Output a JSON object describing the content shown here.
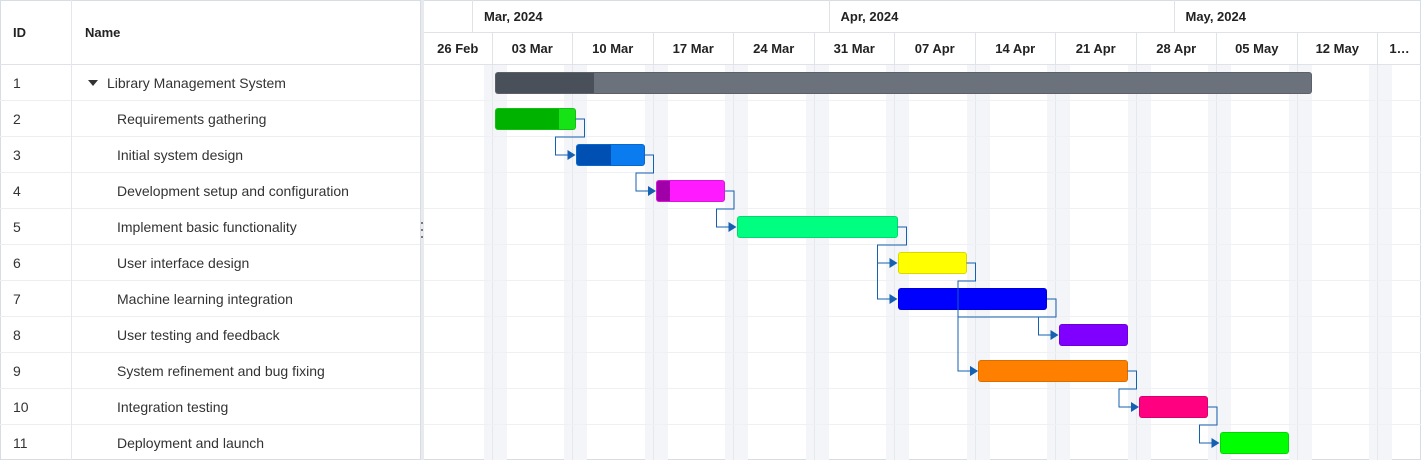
{
  "grid": {
    "headers": {
      "id": "ID",
      "name": "Name"
    },
    "rows": [
      {
        "id": "1",
        "name": "Library Management System",
        "parent": true
      },
      {
        "id": "2",
        "name": "Requirements gathering"
      },
      {
        "id": "3",
        "name": "Initial system design"
      },
      {
        "id": "4",
        "name": "Development setup and configuration"
      },
      {
        "id": "5",
        "name": "Implement basic functionality"
      },
      {
        "id": "6",
        "name": "User interface design"
      },
      {
        "id": "7",
        "name": "Machine learning integration"
      },
      {
        "id": "8",
        "name": "User testing and feedback"
      },
      {
        "id": "9",
        "name": "System refinement and bug fixing"
      },
      {
        "id": "10",
        "name": "Integration testing"
      },
      {
        "id": "11",
        "name": "Deployment and launch"
      }
    ]
  },
  "timeline": {
    "months": [
      "Mar, 2024",
      "Apr, 2024",
      "May, 2024"
    ],
    "weeks": [
      "26 Feb",
      "03 Mar",
      "10 Mar",
      "17 Mar",
      "24 Mar",
      "31 Mar",
      "07 Apr",
      "14 Apr",
      "21 Apr",
      "28 Apr",
      "05 May",
      "12 May",
      "1…"
    ]
  },
  "tasks": [
    {
      "start": "2024-03-03",
      "end": "2024-05-13",
      "color": "#6b727c",
      "progress_color": "#4a5059",
      "progress": 0.12
    },
    {
      "start": "2024-03-03",
      "end": "2024-03-10",
      "color": "#16e316",
      "progress_color": "#00b200",
      "progress": 0.8
    },
    {
      "start": "2024-03-10",
      "end": "2024-03-16",
      "color": "#0a7cf0",
      "progress_color": "#0050b4",
      "progress": 0.52
    },
    {
      "start": "2024-03-17",
      "end": "2024-03-23",
      "color": "#ff1aff",
      "progress_color": "#a000a8",
      "progress": 0.19
    },
    {
      "start": "2024-03-24",
      "end": "2024-04-07",
      "color": "#00ff80",
      "progress_color": "#00ff80",
      "progress": 0
    },
    {
      "start": "2024-04-07",
      "end": "2024-04-13",
      "color": "#ffff00",
      "progress_color": "#ffff00",
      "progress": 0
    },
    {
      "start": "2024-04-07",
      "end": "2024-04-20",
      "color": "#0000ff",
      "progress_color": "#0000ff",
      "progress": 0
    },
    {
      "start": "2024-04-21",
      "end": "2024-04-27",
      "color": "#8000ff",
      "progress_color": "#8000ff",
      "progress": 0
    },
    {
      "start": "2024-04-14",
      "end": "2024-04-27",
      "color": "#ff8000",
      "progress_color": "#ff8000",
      "progress": 0
    },
    {
      "start": "2024-04-28",
      "end": "2024-05-04",
      "color": "#ff0080",
      "progress_color": "#ff0080",
      "progress": 0
    },
    {
      "start": "2024-05-05",
      "end": "2024-05-11",
      "color": "#00ff00",
      "progress_color": "#00ff00",
      "progress": 0
    }
  ],
  "dependencies": [
    [
      1,
      2
    ],
    [
      2,
      3
    ],
    [
      3,
      4
    ],
    [
      4,
      5
    ],
    [
      4,
      6
    ],
    [
      6,
      7
    ],
    [
      5,
      8
    ],
    [
      6,
      8
    ],
    [
      8,
      9
    ],
    [
      9,
      10
    ]
  ]
}
